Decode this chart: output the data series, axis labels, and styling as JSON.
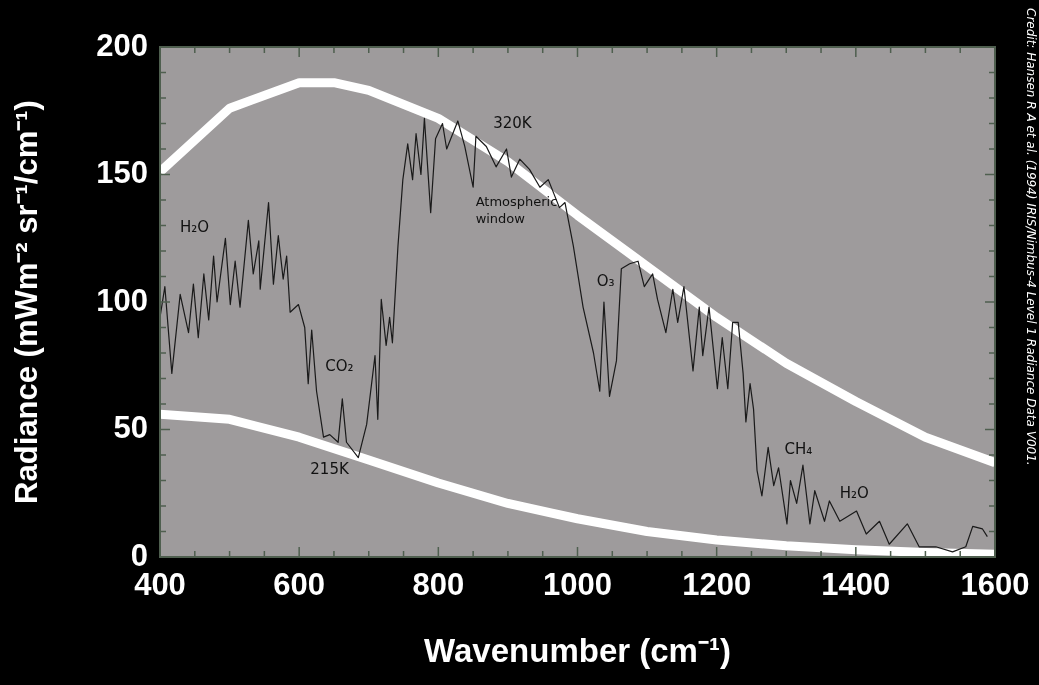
{
  "chart_data": {
    "type": "line",
    "xlabel": "Wavenumber (cm⁻¹)",
    "ylabel": "Radiance (mWm⁻² sr⁻¹/cm⁻¹)",
    "xlim": [
      400,
      1600
    ],
    "ylim": [
      0,
      200
    ],
    "xticks": [
      400,
      {
        "value": 450,
        "label": null
      },
      600,
      {
        "value": 500,
        "label": null
      },
      {
        "value": 550,
        "label": null
      },
      {
        "value": 650,
        "label": null
      },
      {
        "value": 700,
        "label": null
      },
      {
        "value": 750,
        "label": null
      },
      800,
      {
        "value": 850,
        "label": null
      },
      {
        "value": 900,
        "label": null
      },
      {
        "value": 950,
        "label": null
      },
      1000,
      {
        "value": 1050,
        "label": null
      },
      {
        "value": 1100,
        "label": null
      },
      {
        "value": 1150,
        "label": null
      },
      1200,
      {
        "value": 1250,
        "label": null
      },
      {
        "value": 1300,
        "label": null
      },
      {
        "value": 1350,
        "label": null
      },
      1400,
      {
        "value": 1450,
        "label": null
      },
      {
        "value": 1500,
        "label": null
      },
      {
        "value": 1550,
        "label": null
      },
      1600
    ],
    "yticks": [
      0,
      {
        "value": 10,
        "label": null
      },
      {
        "value": 20,
        "label": null
      },
      {
        "value": 30,
        "label": null
      },
      {
        "value": 40,
        "label": null
      },
      50,
      {
        "value": 60,
        "label": null
      },
      {
        "value": 70,
        "label": null
      },
      {
        "value": 80,
        "label": null
      },
      {
        "value": 90,
        "label": null
      },
      100,
      {
        "value": 110,
        "label": null
      },
      {
        "value": 120,
        "label": null
      },
      {
        "value": 130,
        "label": null
      },
      {
        "value": 140,
        "label": null
      },
      150,
      {
        "value": 160,
        "label": null
      },
      {
        "value": 170,
        "label": null
      },
      {
        "value": 180,
        "label": null
      },
      {
        "value": 190,
        "label": null
      },
      200
    ],
    "series": [
      {
        "color": "#1a1a1a",
        "x": [
          400,
          407,
          417,
          429,
          441,
          448,
          455,
          463,
          470,
          477,
          482,
          494,
          501,
          508,
          515,
          527,
          534,
          542,
          544,
          556,
          563,
          570,
          577,
          582,
          587,
          599,
          608,
          613,
          618,
          625,
          635,
          644,
          656,
          662,
          668,
          685,
          697,
          709,
          713,
          718,
          725,
          730,
          734,
          742,
          749,
          756,
          763,
          768,
          775,
          780,
          789,
          796,
          806,
          812,
          828,
          838,
          850,
          854,
          869,
          883,
          898,
          905,
          917,
          931,
          946,
          958,
          974,
          982,
          994,
          1008,
          1023,
          1032,
          1038,
          1046,
          1056,
          1063,
          1075,
          1087,
          1096,
          1108,
          1115,
          1127,
          1137,
          1144,
          1153,
          1166,
          1175,
          1180,
          1189,
          1201,
          1208,
          1216,
          1223,
          1231,
          1238,
          1242,
          1248,
          1253,
          1258,
          1265,
          1274,
          1282,
          1289,
          1301,
          1306,
          1315,
          1324,
          1334,
          1341,
          1355,
          1362,
          1377,
          1401,
          1415,
          1434,
          1448,
          1474,
          1491,
          1515,
          1539,
          1558,
          1568,
          1582,
          1589
        ],
        "values": [
          94,
          106,
          72,
          103,
          88,
          107,
          86,
          111,
          93,
          118,
          100,
          125,
          99,
          116,
          98,
          132,
          111,
          124,
          105,
          139,
          107,
          126,
          109,
          118,
          96,
          99,
          90,
          68,
          89,
          65,
          47,
          48,
          45,
          62,
          45,
          39,
          52,
          79,
          54,
          101,
          83,
          94,
          84,
          122,
          148,
          162,
          148,
          166,
          150,
          172,
          135,
          164,
          170,
          160,
          171,
          161,
          145,
          165,
          161,
          153,
          160,
          149,
          156,
          152,
          145,
          148,
          137,
          139,
          122,
          98,
          80,
          65,
          100,
          63,
          77,
          113,
          115,
          116,
          106,
          111,
          101,
          88,
          105,
          92,
          106,
          73,
          98,
          79,
          98,
          66,
          86,
          66,
          92,
          92,
          72,
          53,
          68,
          58,
          34,
          24,
          43,
          28,
          35,
          13,
          30,
          21,
          36,
          13,
          26,
          14,
          22,
          14,
          18,
          9,
          14,
          5,
          13,
          4,
          4,
          2,
          4,
          12,
          11,
          8
        ]
      },
      {
        "color": "#ffffff",
        "x": [
          400,
          500,
          600,
          650,
          700,
          800,
          900,
          1000,
          1100,
          1200,
          1300,
          1400,
          1500,
          1600
        ],
        "values": [
          151,
          176,
          186,
          186,
          183,
          172,
          155,
          134,
          114,
          94,
          76,
          61,
          47,
          37
        ]
      },
      {
        "color": "#ffffff",
        "x": [
          400,
          500,
          600,
          700,
          800,
          900,
          1000,
          1100,
          1200,
          1300,
          1400,
          1500,
          1600
        ],
        "values": [
          56,
          54,
          47,
          38,
          29,
          21,
          15,
          10,
          6.7,
          4.4,
          2.8,
          1.8,
          1.1
        ]
      }
    ],
    "annotations": [
      "H₂O",
      "CO₂",
      "215K",
      "320K",
      "Atmospheric window",
      "O₃",
      "CH₄",
      "H₂O",
      "Credit: Hansen R A et al. (1994) IRIS/Nimbus-4 Level 1 Radiance Data V001."
    ]
  }
}
